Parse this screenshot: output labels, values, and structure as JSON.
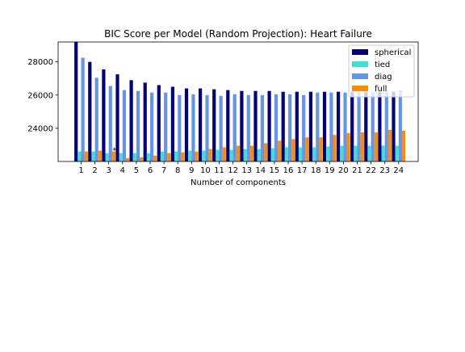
{
  "chart_data": {
    "type": "bar",
    "title": "BIC Score per Model (Random Projection): Heart Failure",
    "xlabel": "Number of components",
    "ylabel": "",
    "categories": [
      "1",
      "2",
      "3",
      "4",
      "5",
      "6",
      "7",
      "8",
      "9",
      "10",
      "11",
      "12",
      "13",
      "14",
      "15",
      "16",
      "17",
      "18",
      "19",
      "20",
      "21",
      "22",
      "23",
      "24"
    ],
    "ylim": [
      22000,
      29200
    ],
    "yticks": [
      24000,
      26000,
      28000
    ],
    "ytick_labels": [
      "24000",
      "26000",
      "28000"
    ],
    "grid": false,
    "legend_position": "top-right",
    "series": [
      {
        "name": "spherical",
        "color": "#000080",
        "values": [
          29200,
          28000,
          27550,
          27250,
          26900,
          26750,
          26600,
          26500,
          26400,
          26400,
          26350,
          26300,
          26250,
          26250,
          26250,
          26200,
          26200,
          26200,
          26200,
          26200,
          26200,
          26200,
          26200,
          26200
        ]
      },
      {
        "name": "tied",
        "color": "#40e0d0",
        "values": [
          22600,
          22600,
          22500,
          22500,
          22500,
          22500,
          22600,
          22600,
          22650,
          22650,
          22700,
          22700,
          22750,
          22750,
          22800,
          22850,
          22850,
          22850,
          22900,
          22950,
          22950,
          22950,
          22950,
          22950
        ]
      },
      {
        "name": "diag",
        "color": "#6495ed",
        "values": [
          28250,
          27050,
          26550,
          26300,
          26250,
          26150,
          26150,
          26000,
          26050,
          26000,
          25950,
          26050,
          26000,
          26000,
          26050,
          26050,
          26000,
          26150,
          26150,
          26150,
          26200,
          26200,
          26250,
          26300
        ]
      },
      {
        "name": "full",
        "color": "#ff8c00",
        "values": [
          22600,
          22650,
          22600,
          22200,
          22250,
          22350,
          22500,
          22550,
          22600,
          22750,
          22850,
          22950,
          22950,
          23100,
          23250,
          23350,
          23450,
          23450,
          23600,
          23700,
          23750,
          23750,
          23900,
          23850
        ]
      }
    ],
    "annotations": [
      {
        "text": "*",
        "x": "4",
        "y": 22700
      }
    ]
  }
}
